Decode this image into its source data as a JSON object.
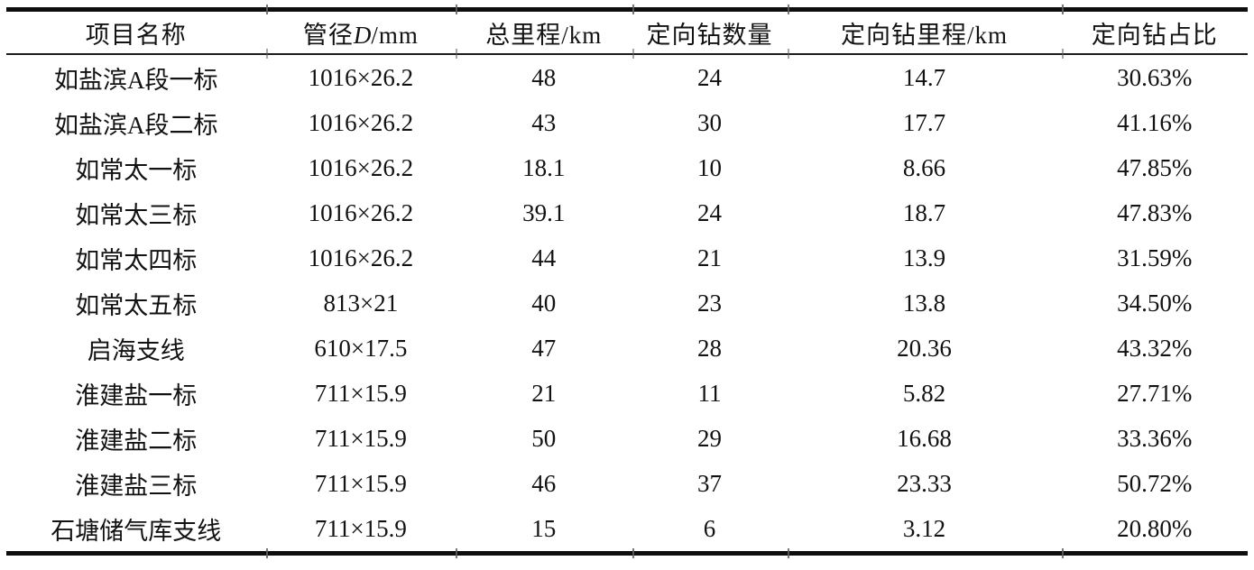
{
  "table": {
    "headers": {
      "project": "项目名称",
      "diameter_prefix": "管径",
      "diameter_var": "D",
      "diameter_suffix": "/mm",
      "total_mileage": "总里程/km",
      "drill_count": "定向钻数量",
      "drill_mileage": "定向钻里程/km",
      "drill_ratio": "定向钻占比"
    },
    "rows": [
      {
        "project": "如盐滨A段一标",
        "diameter": "1016×26.2",
        "total_km": "48",
        "drill_count": "24",
        "drill_km": "14.7",
        "drill_ratio": "30.63%"
      },
      {
        "project": "如盐滨A段二标",
        "diameter": "1016×26.2",
        "total_km": "43",
        "drill_count": "30",
        "drill_km": "17.7",
        "drill_ratio": "41.16%"
      },
      {
        "project": "如常太一标",
        "diameter": "1016×26.2",
        "total_km": "18.1",
        "drill_count": "10",
        "drill_km": "8.66",
        "drill_ratio": "47.85%"
      },
      {
        "project": "如常太三标",
        "diameter": "1016×26.2",
        "total_km": "39.1",
        "drill_count": "24",
        "drill_km": "18.7",
        "drill_ratio": "47.83%"
      },
      {
        "project": "如常太四标",
        "diameter": "1016×26.2",
        "total_km": "44",
        "drill_count": "21",
        "drill_km": "13.9",
        "drill_ratio": "31.59%"
      },
      {
        "project": "如常太五标",
        "diameter": "813×21",
        "total_km": "40",
        "drill_count": "23",
        "drill_km": "13.8",
        "drill_ratio": "34.50%"
      },
      {
        "project": "启海支线",
        "diameter": "610×17.5",
        "total_km": "47",
        "drill_count": "28",
        "drill_km": "20.36",
        "drill_ratio": "43.32%"
      },
      {
        "project": "淮建盐一标",
        "diameter": "711×15.9",
        "total_km": "21",
        "drill_count": "11",
        "drill_km": "5.82",
        "drill_ratio": "27.71%"
      },
      {
        "project": "淮建盐二标",
        "diameter": "711×15.9",
        "total_km": "50",
        "drill_count": "29",
        "drill_km": "16.68",
        "drill_ratio": "33.36%"
      },
      {
        "project": "淮建盐三标",
        "diameter": "711×15.9",
        "total_km": "46",
        "drill_count": "37",
        "drill_km": "23.33",
        "drill_ratio": "50.72%"
      },
      {
        "project": "石塘储气库支线",
        "diameter": "711×15.9",
        "total_km": "15",
        "drill_count": "6",
        "drill_km": "3.12",
        "drill_ratio": "20.80%"
      }
    ],
    "colors": {
      "text": "#121212",
      "rule": "#0e0e0e",
      "divider_nub": "#5f5f5f",
      "background": "#ffffff"
    }
  }
}
